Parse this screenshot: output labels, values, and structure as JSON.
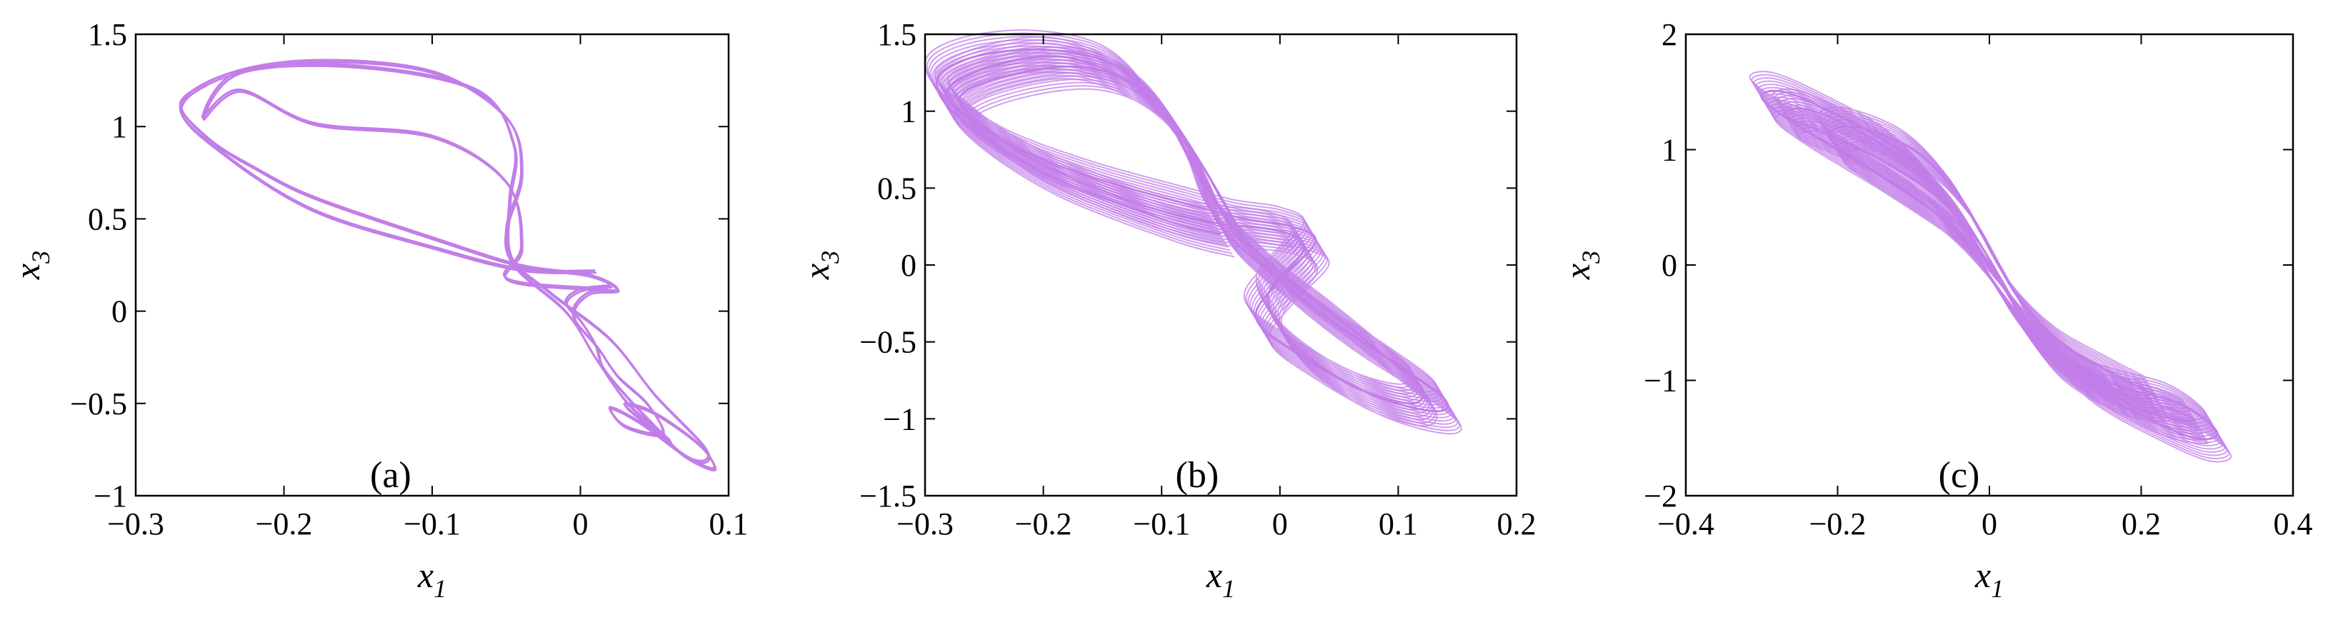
{
  "chart_data": [
    {
      "type": "line",
      "panel_label": "(a)",
      "xlabel": "x",
      "xlabel_sub": "1",
      "ylabel": "x",
      "ylabel_sub": "3",
      "xlim": [
        -0.3,
        0.1
      ],
      "ylim": [
        -1,
        1.5
      ],
      "xticks": [
        -0.3,
        -0.2,
        -0.1,
        0,
        0.1
      ],
      "xtick_labels": [
        "−0.3",
        "−0.2",
        "−0.1",
        "0",
        "0.1"
      ],
      "yticks": [
        -1,
        -0.5,
        0,
        0.5,
        1,
        1.5
      ],
      "ytick_labels": [
        "−1",
        "−0.5",
        "0",
        "0.5",
        "1",
        "1.5"
      ],
      "grid": false,
      "color": "#c27ee8",
      "series": [
        {
          "x": [
            0.01,
            -0.04,
            -0.1,
            -0.18,
            -0.24,
            -0.27,
            -0.24,
            -0.18,
            -0.1,
            -0.05,
            -0.04,
            -0.05,
            -0.045,
            -0.01,
            0.01,
            0.03,
            0.05,
            0.07,
            0.09,
            0.08,
            0.05,
            0.03,
            0.04,
            0.06,
            0.05,
            0.03,
            0.015,
            0.01,
            0.0,
            -0.01,
            0.0,
            0.02,
            0.0,
            -0.05,
            -0.04,
            -0.05,
            -0.1,
            -0.18,
            -0.23,
            -0.255,
            -0.23,
            -0.15,
            -0.07,
            -0.045,
            -0.048,
            -0.047,
            -0.02,
            0.02,
            0.05,
            0.085,
            0.075,
            0.04,
            0.02,
            0.03,
            0.055,
            0.045,
            0.025,
            0.012,
            -0.005,
            0.005,
            0.025,
            0.005,
            -0.04,
            -0.1,
            -0.18,
            -0.22,
            -0.25,
            -0.27,
            -0.25
          ],
          "y": [
            0.22,
            0.23,
            0.35,
            0.55,
            0.85,
            1.1,
            1.28,
            1.36,
            1.3,
            1.05,
            0.75,
            0.45,
            0.25,
            0.0,
            -0.25,
            -0.48,
            -0.63,
            -0.78,
            -0.85,
            -0.72,
            -0.55,
            -0.5,
            -0.58,
            -0.7,
            -0.62,
            -0.45,
            -0.3,
            -0.18,
            -0.05,
            0.05,
            0.12,
            0.14,
            0.13,
            0.18,
            0.35,
            0.7,
            0.95,
            1.02,
            1.2,
            1.05,
            1.3,
            1.33,
            1.2,
            0.9,
            0.6,
            0.3,
            0.1,
            -0.15,
            -0.45,
            -0.75,
            -0.8,
            -0.6,
            -0.52,
            -0.62,
            -0.66,
            -0.5,
            -0.35,
            -0.2,
            -0.02,
            0.1,
            0.12,
            0.2,
            0.25,
            0.4,
            0.62,
            0.78,
            0.93,
            1.12,
            1.25
          ]
        }
      ]
    },
    {
      "type": "line",
      "panel_label": "(b)",
      "xlabel": "x",
      "xlabel_sub": "1",
      "ylabel": "x",
      "ylabel_sub": "3",
      "xlim": [
        -0.3,
        0.2
      ],
      "ylim": [
        -1.5,
        1.5
      ],
      "xticks": [
        -0.3,
        -0.2,
        -0.1,
        0,
        0.1,
        0.2
      ],
      "xtick_labels": [
        "−0.3",
        "−0.2",
        "−0.1",
        "0",
        "0.1",
        "0.2"
      ],
      "yticks": [
        -1.5,
        -1,
        -0.5,
        0,
        0.5,
        1,
        1.5
      ],
      "ytick_labels": [
        "−1.5",
        "−1",
        "−0.5",
        "0",
        "0.5",
        "1",
        "1.5"
      ],
      "grid": false,
      "color": "#c27ee8",
      "series": [
        {
          "x": [
            -0.05,
            -0.1,
            -0.2,
            -0.27,
            -0.29,
            -0.26,
            -0.2,
            -0.14,
            -0.1,
            -0.07,
            -0.05,
            0.0,
            0.05,
            0.1,
            0.14,
            0.13,
            0.08,
            0.02,
            -0.02,
            0.0,
            0.03,
            0.01,
            -0.03,
            -0.08,
            -0.15,
            -0.22,
            -0.27,
            -0.28,
            -0.24,
            -0.18,
            -0.12,
            -0.08,
            -0.05,
            0.0,
            0.05,
            0.09,
            0.12,
            0.11,
            0.06,
            0.01,
            -0.01,
            0.02,
            0.0,
            -0.06,
            -0.12,
            -0.2,
            -0.25,
            -0.27,
            -0.22,
            -0.16,
            -0.11,
            -0.07,
            -0.04
          ],
          "y": [
            0.2,
            0.3,
            0.6,
            0.95,
            1.2,
            1.35,
            1.4,
            1.3,
            1.0,
            0.6,
            0.25,
            -0.1,
            -0.4,
            -0.65,
            -0.88,
            -0.95,
            -0.85,
            -0.6,
            -0.35,
            -0.1,
            0.15,
            0.25,
            0.3,
            0.4,
            0.55,
            0.75,
            1.0,
            1.15,
            1.3,
            1.35,
            1.15,
            0.8,
            0.35,
            -0.05,
            -0.35,
            -0.6,
            -0.8,
            -0.9,
            -0.78,
            -0.5,
            -0.2,
            0.1,
            0.22,
            0.28,
            0.4,
            0.65,
            0.9,
            1.1,
            1.25,
            1.28,
            1.1,
            0.7,
            0.3
          ]
        }
      ]
    },
    {
      "type": "line",
      "panel_label": "(c)",
      "xlabel": "x",
      "xlabel_sub": "1",
      "ylabel": "x",
      "ylabel_sub": "3",
      "xlim": [
        -0.4,
        0.4
      ],
      "ylim": [
        -2,
        2
      ],
      "xticks": [
        -0.4,
        -0.2,
        0,
        0.2,
        0.4
      ],
      "xtick_labels": [
        "−0.4",
        "−0.2",
        "0",
        "0.2",
        "0.4"
      ],
      "yticks": [
        -2,
        -1,
        0,
        1,
        2
      ],
      "ytick_labels": [
        "−2",
        "−1",
        "0",
        "1",
        "2"
      ],
      "grid": false,
      "color": "#c27ee8",
      "series": [
        {
          "x": [
            0.0,
            -0.05,
            -0.15,
            -0.25,
            -0.3,
            -0.27,
            -0.2,
            -0.12,
            -0.06,
            -0.02,
            0.02,
            0.06,
            0.15,
            0.25,
            0.3,
            0.27,
            0.2,
            0.12,
            0.06,
            0.02,
            -0.02,
            -0.06,
            -0.14,
            -0.22,
            -0.27,
            -0.24,
            -0.17,
            -0.1,
            -0.04,
            0.0,
            0.04,
            0.1,
            0.17,
            0.24,
            0.27,
            0.22,
            0.14,
            0.07,
            0.02,
            -0.02,
            -0.08,
            -0.16,
            -0.21,
            -0.18,
            -0.1,
            -0.04,
            0.0,
            0.04,
            0.1,
            0.18,
            0.22,
            0.16,
            0.08,
            0.02
          ],
          "y": [
            0.0,
            0.35,
            0.8,
            1.2,
            1.45,
            1.5,
            1.3,
            1.0,
            0.6,
            0.2,
            -0.2,
            -0.6,
            -1.0,
            -1.2,
            -1.45,
            -1.5,
            -1.3,
            -1.0,
            -0.6,
            -0.2,
            0.2,
            0.55,
            0.9,
            1.15,
            1.3,
            1.35,
            1.15,
            0.85,
            0.45,
            0.05,
            -0.4,
            -0.8,
            -1.1,
            -1.25,
            -1.35,
            -1.3,
            -1.05,
            -0.7,
            -0.3,
            0.1,
            0.5,
            0.85,
            1.1,
            1.2,
            1.0,
            0.6,
            0.15,
            -0.3,
            -0.7,
            -1.0,
            -1.15,
            -1.1,
            -0.8,
            -0.3
          ]
        }
      ]
    }
  ]
}
